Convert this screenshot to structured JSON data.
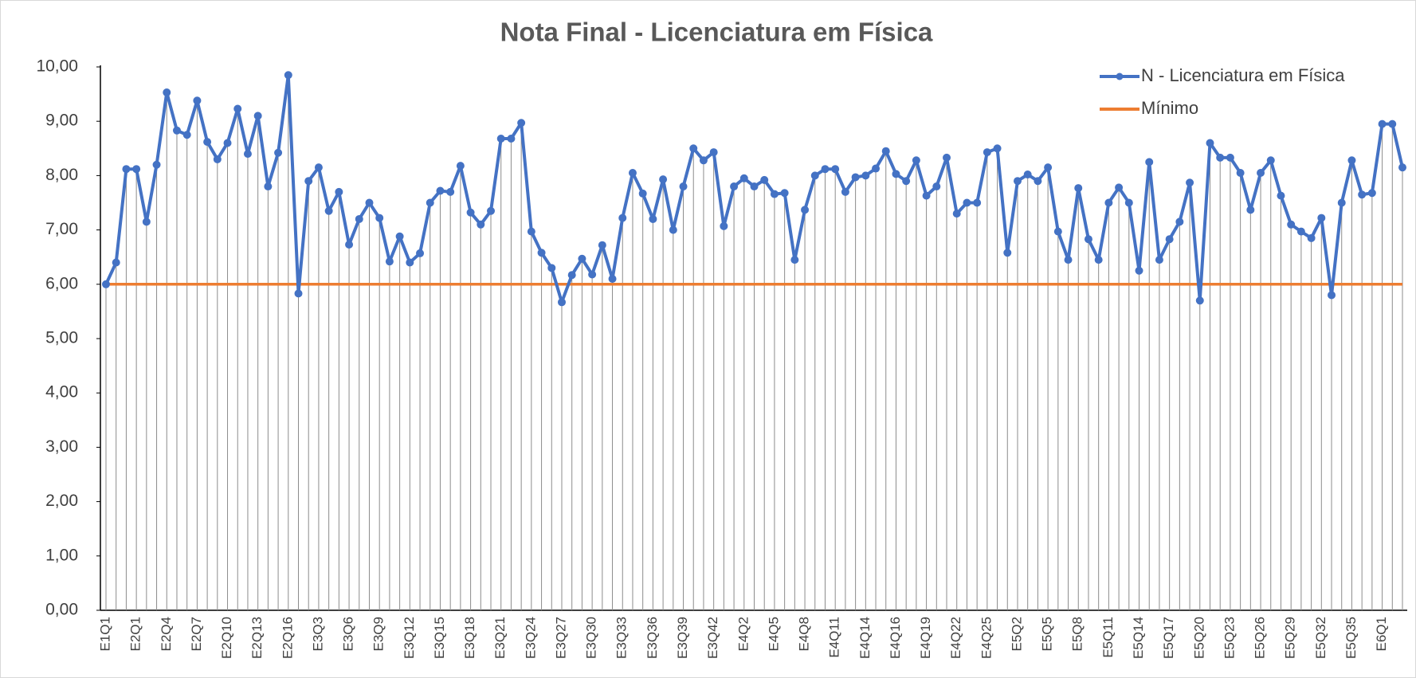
{
  "chart_data": {
    "type": "line",
    "title": "Nota Final - Licenciatura em Física",
    "categories": [
      "E1Q1",
      null,
      null,
      "E2Q1",
      null,
      null,
      "E2Q4",
      null,
      null,
      "E2Q7",
      null,
      null,
      "E2Q10",
      null,
      null,
      "E2Q13",
      null,
      null,
      "E2Q16",
      null,
      null,
      "E3Q3",
      null,
      null,
      "E3Q6",
      null,
      null,
      "E3Q9",
      null,
      null,
      "E3Q12",
      null,
      null,
      "E3Q15",
      null,
      null,
      "E3Q18",
      null,
      null,
      "E3Q21",
      null,
      null,
      "E3Q24",
      null,
      null,
      "E3Q27",
      null,
      null,
      "E3Q30",
      null,
      null,
      "E3Q33",
      null,
      null,
      "E3Q36",
      null,
      null,
      "E3Q39",
      null,
      null,
      "E3Q42",
      null,
      null,
      "E4Q2",
      null,
      null,
      "E4Q5",
      null,
      null,
      "E4Q8",
      null,
      null,
      "E4Q11",
      null,
      null,
      "E4Q14",
      null,
      null,
      "E4Q16",
      null,
      null,
      "E4Q19",
      null,
      null,
      "E4Q22",
      null,
      null,
      "E4Q25",
      null,
      null,
      "E5Q2",
      null,
      null,
      "E5Q5",
      null,
      null,
      "E5Q8",
      null,
      null,
      "E5Q11",
      null,
      null,
      "E5Q14",
      null,
      null,
      "E5Q17",
      null,
      null,
      "E5Q20",
      null,
      null,
      "E5Q23",
      null,
      null,
      "E5Q26",
      null,
      null,
      "E5Q29",
      null,
      null,
      "E5Q32",
      null,
      null,
      "E5Q35",
      null,
      null,
      "E6Q1",
      null,
      null
    ],
    "series": [
      {
        "name": "N - Licenciatura em Física",
        "color": "#4472c4",
        "markers": true,
        "values": [
          6.0,
          6.4,
          8.12,
          8.12,
          7.15,
          8.2,
          9.53,
          8.83,
          8.75,
          9.38,
          8.62,
          8.3,
          8.6,
          9.23,
          8.4,
          9.1,
          7.8,
          8.42,
          9.85,
          5.83,
          7.9,
          8.15,
          7.35,
          7.7,
          6.73,
          7.2,
          7.5,
          7.22,
          6.42,
          6.88,
          6.4,
          6.57,
          7.5,
          7.72,
          7.7,
          8.18,
          7.32,
          7.1,
          7.35,
          8.68,
          8.68,
          8.97,
          6.97,
          6.58,
          6.3,
          5.67,
          6.17,
          6.47,
          6.18,
          6.72,
          6.1,
          7.22,
          8.05,
          7.67,
          7.2,
          7.93,
          7.0,
          7.8,
          8.5,
          8.28,
          8.43,
          7.07,
          7.8,
          7.95,
          7.8,
          7.92,
          7.66,
          7.68,
          6.45,
          7.37,
          8.0,
          8.12,
          8.12,
          7.7,
          7.97,
          8.0,
          8.13,
          8.45,
          8.03,
          7.9,
          8.28,
          7.63,
          7.8,
          8.33,
          7.3,
          7.5,
          7.5,
          8.43,
          8.5,
          6.58,
          7.9,
          8.02,
          7.9,
          8.15,
          6.97,
          6.45,
          7.77,
          6.83,
          6.45,
          7.5,
          7.78,
          7.5,
          6.25,
          8.25,
          6.45,
          6.83,
          7.15,
          7.87,
          5.7,
          8.6,
          8.33,
          8.33,
          8.05,
          7.37,
          8.05,
          8.28,
          7.63,
          7.1,
          6.97,
          6.85,
          7.22,
          5.8,
          7.5,
          8.28,
          7.65,
          7.68,
          8.95,
          8.95,
          8.15
        ]
      },
      {
        "name": "Mínimo",
        "color": "#ed7d31",
        "markers": false,
        "values": [
          6,
          6,
          6,
          6,
          6,
          6,
          6,
          6,
          6,
          6,
          6,
          6,
          6,
          6,
          6,
          6,
          6,
          6,
          6,
          6,
          6,
          6,
          6,
          6,
          6,
          6,
          6,
          6,
          6,
          6,
          6,
          6,
          6,
          6,
          6,
          6,
          6,
          6,
          6,
          6,
          6,
          6,
          6,
          6,
          6,
          6,
          6,
          6,
          6,
          6,
          6,
          6,
          6,
          6,
          6,
          6,
          6,
          6,
          6,
          6,
          6,
          6,
          6,
          6,
          6,
          6,
          6,
          6,
          6,
          6,
          6,
          6,
          6,
          6,
          6,
          6,
          6,
          6,
          6,
          6,
          6,
          6,
          6,
          6,
          6,
          6,
          6,
          6,
          6,
          6,
          6,
          6,
          6,
          6,
          6,
          6,
          6,
          6,
          6,
          6,
          6,
          6,
          6,
          6,
          6,
          6,
          6,
          6,
          6,
          6,
          6,
          6,
          6,
          6,
          6,
          6,
          6,
          6,
          6,
          6,
          6,
          6,
          6,
          6,
          6,
          6,
          6,
          6,
          6
        ]
      }
    ],
    "drop_lines": true,
    "ylim": [
      0,
      10
    ],
    "yticks": [
      {
        "value": 0,
        "label": "0,00"
      },
      {
        "value": 1,
        "label": "1,00"
      },
      {
        "value": 2,
        "label": "2,00"
      },
      {
        "value": 3,
        "label": "3,00"
      },
      {
        "value": 4,
        "label": "4,00"
      },
      {
        "value": 5,
        "label": "5,00"
      },
      {
        "value": 6,
        "label": "6,00"
      },
      {
        "value": 7,
        "label": "7,00"
      },
      {
        "value": 8,
        "label": "8,00"
      },
      {
        "value": 9,
        "label": "9,00"
      },
      {
        "value": 10,
        "label": "10,00"
      }
    ],
    "legend": "top-right"
  }
}
